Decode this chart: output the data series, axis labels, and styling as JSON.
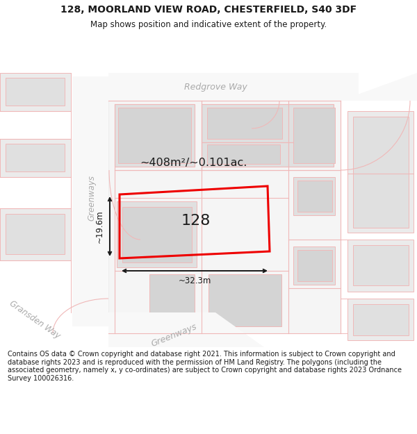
{
  "title_line1": "128, MOORLAND VIEW ROAD, CHESTERFIELD, S40 3DF",
  "title_line2": "Map shows position and indicative extent of the property.",
  "footer_text": "Contains OS data © Crown copyright and database right 2021. This information is subject to Crown copyright and database rights 2023 and is reproduced with the permission of HM Land Registry. The polygons (including the associated geometry, namely x, y co-ordinates) are subject to Crown copyright and database rights 2023 Ordnance Survey 100026316.",
  "area_label": "~408m²/~0.101ac.",
  "number_label": "128",
  "dim_width": "~32.3m",
  "dim_height": "~19.6m",
  "street_redgrove": "Redgrove Way",
  "street_greenways_vert": "Greenways",
  "street_greenways_diag": "Greenways",
  "street_gransden": "Gransden Way",
  "map_bg": "#ffffff",
  "block_fill_light": "#ebebeb",
  "block_fill_mid": "#e0e0e0",
  "block_fill_dark": "#d4d4d4",
  "road_fill": "#f5f5f5",
  "boundary_pink": "#f0b8b8",
  "boundary_pink2": "#e8a8a8",
  "red_plot": "#ee0000",
  "dark_text": "#1a1a1a",
  "grey_street": "#aaaaaa",
  "title_fs": 10,
  "subtitle_fs": 8.5,
  "footer_fs": 7.0,
  "area_fs": 11.5,
  "num_fs": 16,
  "dim_fs": 8.5,
  "street_fs": 8.5
}
